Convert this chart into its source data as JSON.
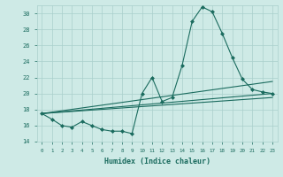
{
  "title": "",
  "xlabel": "Humidex (Indice chaleur)",
  "bg_color": "#ceeae6",
  "line_color": "#1a6b5e",
  "grid_color": "#aacfcc",
  "xlim": [
    -0.5,
    23.5
  ],
  "ylim": [
    14,
    31
  ],
  "xticks": [
    0,
    1,
    2,
    3,
    4,
    5,
    6,
    7,
    8,
    9,
    10,
    11,
    12,
    13,
    14,
    15,
    16,
    17,
    18,
    19,
    20,
    21,
    22,
    23
  ],
  "yticks": [
    14,
    16,
    18,
    20,
    22,
    24,
    26,
    28,
    30
  ],
  "series1_x": [
    0,
    1,
    2,
    3,
    4,
    5,
    6,
    7,
    8,
    9,
    10,
    11,
    12,
    13,
    14,
    15,
    16,
    17,
    18,
    19,
    20,
    21,
    22,
    23
  ],
  "series1_y": [
    17.5,
    16.8,
    16.0,
    15.8,
    16.5,
    16.0,
    15.5,
    15.3,
    15.3,
    15.0,
    20.0,
    22.0,
    19.0,
    19.5,
    23.5,
    29.0,
    30.8,
    30.2,
    27.5,
    24.5,
    21.8,
    20.5,
    20.2,
    20.0
  ],
  "series2_x": [
    0,
    23
  ],
  "series2_y": [
    17.5,
    21.5
  ],
  "series3_x": [
    0,
    23
  ],
  "series3_y": [
    17.5,
    20.0
  ],
  "series4_x": [
    0,
    23
  ],
  "series4_y": [
    17.5,
    19.5
  ]
}
